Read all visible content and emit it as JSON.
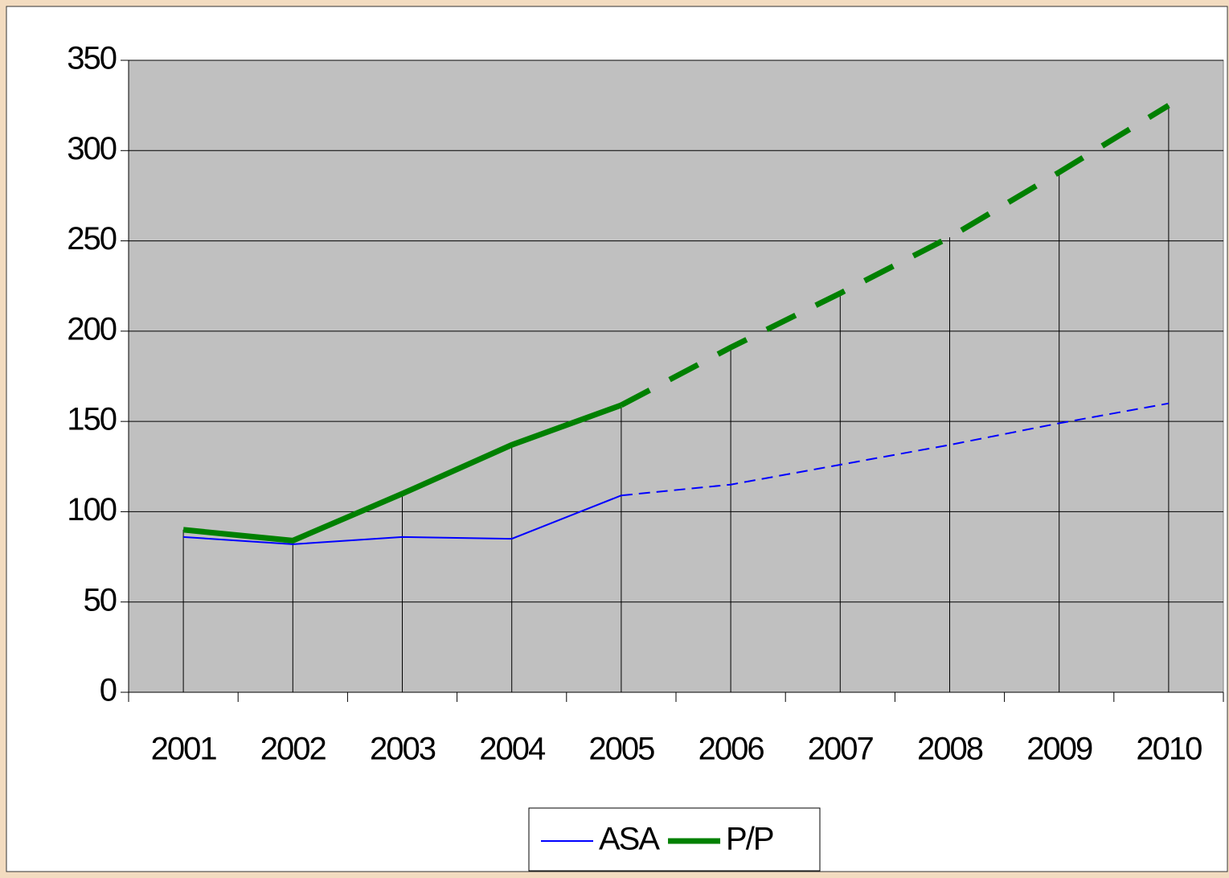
{
  "chart_data": {
    "type": "line",
    "categories": [
      "2001",
      "2002",
      "2003",
      "2004",
      "2005",
      "2006",
      "2007",
      "2008",
      "2009",
      "2010"
    ],
    "series": [
      {
        "name": "ASA",
        "color": "#0000ff",
        "width": 2,
        "dashed_from": "2005",
        "values": [
          86,
          82,
          86,
          85,
          109,
          115,
          126,
          137,
          149,
          160
        ]
      },
      {
        "name": "P/P",
        "color": "#008000",
        "width": 7,
        "dashed_from": "2005",
        "values": [
          90,
          84,
          110,
          137,
          159,
          191,
          221,
          252,
          288,
          325
        ]
      }
    ],
    "ylim": [
      0,
      350
    ],
    "yticks": [
      0,
      50,
      100,
      150,
      200,
      250,
      300,
      350
    ],
    "grid": true,
    "drop_lines": true,
    "legend": "bottom"
  }
}
